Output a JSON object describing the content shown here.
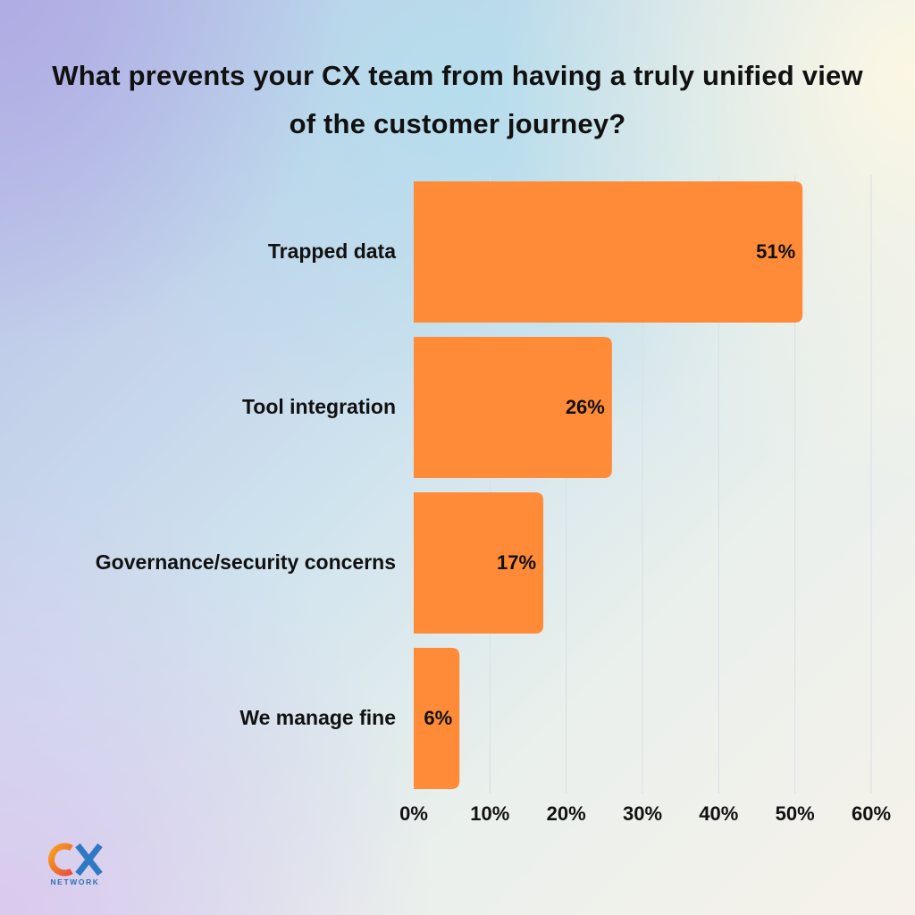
{
  "chart_data": {
    "type": "bar",
    "orientation": "horizontal",
    "title": "What prevents your CX team from having a truly unified view of the customer journey?",
    "categories": [
      "Trapped data",
      "Tool integration",
      "Governance/security concerns",
      "We manage fine"
    ],
    "values": [
      51,
      26,
      17,
      6
    ],
    "data_labels": [
      "51%",
      "26%",
      "17%",
      "6%"
    ],
    "xlim": [
      0,
      60
    ],
    "xticks": [
      0,
      10,
      20,
      30,
      40,
      50,
      60
    ],
    "xtick_labels": [
      "0%",
      "10%",
      "20%",
      "30%",
      "40%",
      "50%",
      "60%"
    ],
    "xlabel": "",
    "ylabel": "",
    "grid": "vertical",
    "bar_color": "#ff8a38",
    "grid_color": "#d7dee6"
  },
  "logo": {
    "mark": "CX",
    "subtitle": "NETWORK",
    "colors": {
      "c": "#f26b2a",
      "x": "#2f78c4"
    }
  }
}
